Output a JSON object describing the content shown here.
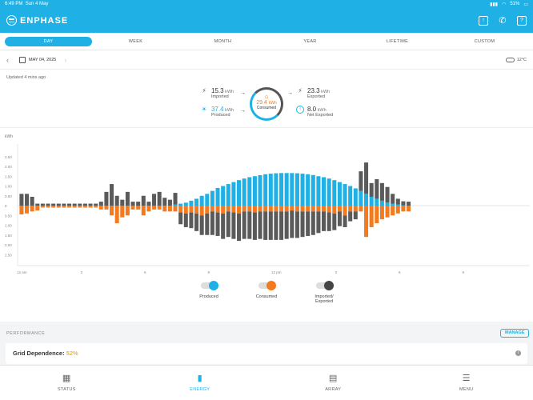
{
  "status_bar": {
    "time": "6:49 PM",
    "date": "Sun 4 May",
    "battery": "51%"
  },
  "header": {
    "brand": "ENPHASE",
    "icons": [
      "share-icon",
      "phone-icon",
      "help-icon"
    ]
  },
  "tabs": [
    {
      "label": "DAY",
      "active": true
    },
    {
      "label": "WEEK",
      "active": false
    },
    {
      "label": "MONTH",
      "active": false
    },
    {
      "label": "YEAR",
      "active": false
    },
    {
      "label": "LIFETIME",
      "active": false
    },
    {
      "label": "CUSTOM",
      "active": false
    }
  ],
  "date_bar": {
    "date": "MAY 04, 2025",
    "temperature": "12°C"
  },
  "summary": {
    "updated": "Updated 4 mins ago",
    "imported": {
      "value": "15.3",
      "unit": "kWh",
      "label": "Imported"
    },
    "produced": {
      "value": "37.4",
      "unit": "kWh",
      "label": "Produced"
    },
    "consumed": {
      "value": "29.4",
      "unit": "kWh",
      "label": "Consumed"
    },
    "exported": {
      "value": "23.3",
      "unit": "kWh",
      "label": "Exported"
    },
    "net_exported": {
      "value": "8.0",
      "unit": "kWh",
      "label": "Net Exported"
    }
  },
  "chart_data": {
    "type": "bar",
    "ylabel": "kWh",
    "ylim": [
      -3,
      3
    ],
    "yticks_top": [
      "2.50",
      "2.00",
      "1.50",
      "1.00",
      "0.50",
      "0"
    ],
    "yticks_bottom": [
      "0.50",
      "1.00",
      "1.50",
      "2.00",
      "2.50"
    ],
    "xticks": [
      "12 am",
      "3",
      "6",
      "9",
      "12 pm",
      "3",
      "6",
      "9"
    ],
    "interval": "15 min",
    "colors": {
      "produced": "#1fb1e6",
      "consumed": "#f47a20",
      "grid": "#5a5a5a"
    },
    "series": [
      {
        "name": "Produced",
        "values": [
          0,
          0,
          0,
          0,
          0,
          0,
          0,
          0,
          0,
          0,
          0,
          0,
          0,
          0,
          0,
          0,
          0,
          0,
          0,
          0,
          0,
          0,
          0,
          0,
          0,
          0,
          0,
          0,
          0,
          0.05,
          0.1,
          0.15,
          0.25,
          0.35,
          0.5,
          0.6,
          0.75,
          0.9,
          1.0,
          1.1,
          1.2,
          1.3,
          1.38,
          1.45,
          1.5,
          1.55,
          1.6,
          1.63,
          1.65,
          1.66,
          1.66,
          1.66,
          1.65,
          1.63,
          1.6,
          1.56,
          1.5,
          1.45,
          1.38,
          1.3,
          1.2,
          1.1,
          1.0,
          0.88,
          0.75,
          0.6,
          0.45,
          0.35,
          0.25,
          0.15,
          0.1,
          0.05,
          0.02,
          0
        ]
      },
      {
        "name": "Consumed",
        "values": [
          -0.45,
          -0.4,
          -0.3,
          -0.25,
          -0.1,
          -0.1,
          -0.1,
          -0.1,
          -0.1,
          -0.1,
          -0.1,
          -0.1,
          -0.1,
          -0.1,
          -0.1,
          -0.2,
          -0.2,
          -0.5,
          -0.9,
          -0.6,
          -0.5,
          -0.2,
          -0.2,
          -0.5,
          -0.3,
          -0.2,
          -0.2,
          -0.3,
          -0.3,
          -0.3,
          -0.35,
          -0.4,
          -0.35,
          -0.4,
          -0.5,
          -0.4,
          -0.3,
          -0.35,
          -0.4,
          -0.3,
          -0.35,
          -0.4,
          -0.3,
          -0.3,
          -0.35,
          -0.3,
          -0.3,
          -0.3,
          -0.3,
          -0.3,
          -0.3,
          -0.25,
          -0.3,
          -0.3,
          -0.3,
          -0.3,
          -0.3,
          -0.3,
          -0.35,
          -0.4,
          -0.3,
          -0.5,
          -0.3,
          -0.3,
          -0.3,
          -1.6,
          -1.1,
          -0.9,
          -0.7,
          -0.6,
          -0.5,
          -0.4,
          -0.3,
          -0.3
        ]
      },
      {
        "name": "Imported/Exported",
        "values": [
          0.6,
          0.6,
          0.45,
          0.1,
          0.1,
          0.1,
          0.1,
          0.1,
          0.1,
          0.1,
          0.1,
          0.1,
          0.1,
          0.1,
          0.1,
          0.2,
          0.7,
          1.1,
          0.5,
          0.3,
          0.7,
          0.2,
          0.2,
          0.5,
          0.2,
          0.6,
          0.7,
          0.4,
          0.3,
          0.6,
          -0.6,
          -0.7,
          -0.8,
          -0.9,
          -1.0,
          -1.1,
          -1.2,
          -1.2,
          -1.3,
          -1.3,
          -1.35,
          -1.4,
          -1.4,
          -1.4,
          -1.4,
          -1.4,
          -1.45,
          -1.45,
          -1.45,
          -1.45,
          -1.4,
          -1.4,
          -1.35,
          -1.3,
          -1.25,
          -1.2,
          -1.1,
          -1.0,
          -0.95,
          -0.85,
          -0.75,
          -0.6,
          -0.5,
          -0.4,
          1.0,
          1.6,
          0.7,
          1.0,
          0.9,
          0.8,
          0.5,
          0.3,
          0.2,
          0.2
        ]
      }
    ],
    "legend": [
      {
        "label": "Produced",
        "color": "#1fb1e6"
      },
      {
        "label": "Consumed",
        "color": "#f47a20"
      },
      {
        "label": "Imported/\nExported",
        "color": "#444444"
      }
    ]
  },
  "performance": {
    "label": "PERFORMANCE",
    "manage": "MANAGE",
    "grid_dependence_label": "Grid Dependence:",
    "grid_dependence_value": "52%"
  },
  "nav": [
    {
      "label": "STATUS",
      "icon": "status-grid-icon",
      "active": false
    },
    {
      "label": "ENERGY",
      "icon": "energy-bars-icon",
      "active": true
    },
    {
      "label": "ARRAY",
      "icon": "array-panels-icon",
      "active": false
    },
    {
      "label": "MENU",
      "icon": "menu-icon",
      "active": false
    }
  ]
}
